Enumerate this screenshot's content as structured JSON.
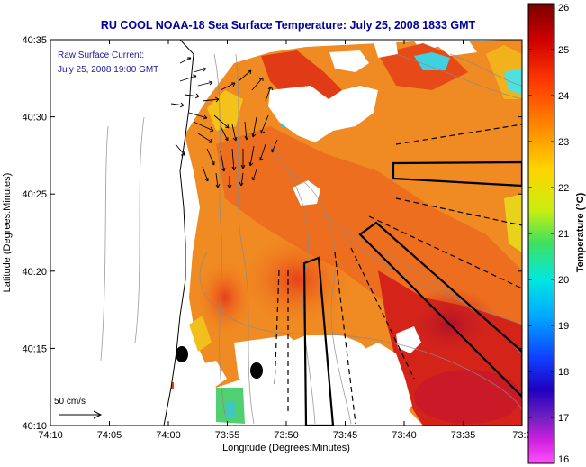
{
  "title": "RU COOL  NOAA-18  Sea Surface Temperature:  July 25, 2008 1833 GMT",
  "legend": {
    "line1": "Raw Surface Current:",
    "line2": "July 25, 2008 19:00 GMT"
  },
  "scale_label": "50 cm/s",
  "xlabel": "Longitude (Degrees:Minutes)",
  "ylabel": "Latitude (Degrees:Minutes)",
  "colorbar": {
    "label": "Temperature (°C)",
    "min": 16,
    "max": 26,
    "ticks": [
      "26",
      "25",
      "24",
      "23",
      "22",
      "21",
      "20",
      "19",
      "18",
      "17",
      "16"
    ]
  },
  "x_ticks": [
    "74:10",
    "74:05",
    "74:00",
    "73:55",
    "73:50",
    "73:45",
    "73:40",
    "73:35",
    "73:3"
  ],
  "y_ticks": [
    "40:35",
    "40:30",
    "40:25",
    "40:20",
    "40:15",
    "40:10"
  ],
  "colors": {
    "title": "#0000a0",
    "land": "#ffffff",
    "warm": "#d42a10",
    "mid": "#f07a1c",
    "cool": "#f5c21c"
  }
}
